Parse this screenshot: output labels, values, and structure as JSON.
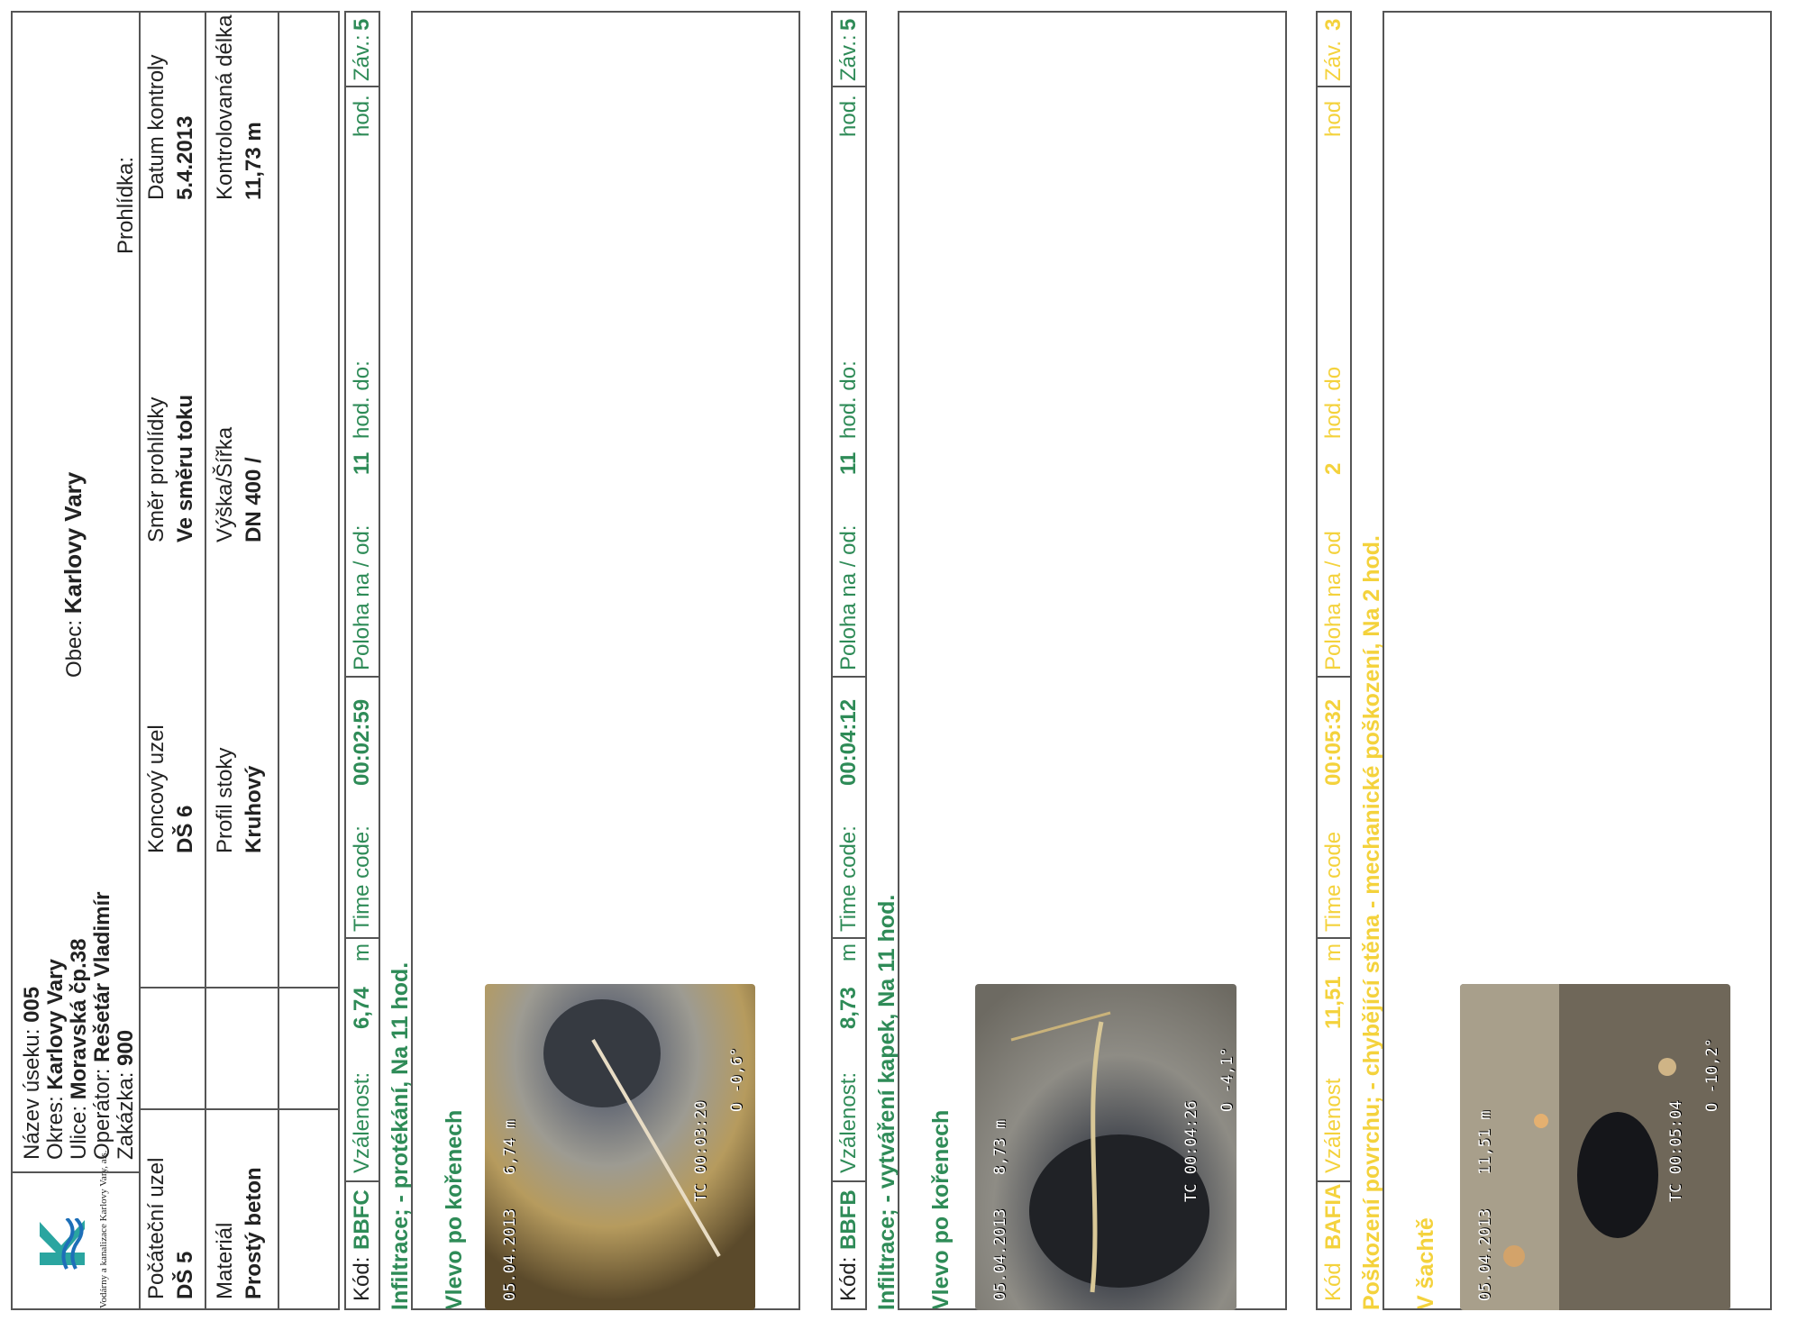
{
  "header": {
    "company": "Vodárny a kanalizace Karlovy Vary, a.s.",
    "section_label": "Název úseku:",
    "section_value": "005",
    "district_label": "Okres:",
    "district_value": "Karlovy Vary",
    "street_label": "Ulice:",
    "street_value": "Moravská čp.38",
    "operator_label": "Operátor:",
    "operator_value": "Rešetár Vladimír",
    "order_label": "Zakázka:",
    "order_value": "900",
    "municipality_label": "Obec:",
    "municipality_value": "Karlovy Vary",
    "inspection_label": "Prohlídka:",
    "start_node_label": "Počáteční uzel",
    "start_node_value": "DŠ 5",
    "end_node_label": "Koncový uzel",
    "end_node_value": "DŠ 6",
    "direction_label": "Směr prohlídky",
    "direction_value": "Ve směru toku",
    "date_label": "Datum kontroly",
    "date_value": "5.4.2013",
    "material_label": "Materiál",
    "material_value": "Prostý beton",
    "profile_label": "Profil stoky",
    "profile_value": "Kruhový",
    "size_label": "Výška/Šířka",
    "size_value": "DN 400  /",
    "length_label": "Kontrolovaná délka",
    "length_value": "11,73 m"
  },
  "defects": [
    {
      "code_label": "Kód:",
      "code": "BBFC",
      "distance_label": "Vzálenost:",
      "distance": "6,74",
      "unit": "m",
      "timecode_label": "Time code:",
      "timecode": "00:02:59",
      "position_label": "Poloha na / od:",
      "position_from": "11",
      "position_to_label": "hod. do:",
      "position_unit": "hod.",
      "severity_label": "Záv.:",
      "severity": "5",
      "description": "Infiltrace; - protékání, Na 11 hod.",
      "location": "Vlevo po kořenech",
      "osd_distance": "6,74 m",
      "osd_date": "05.04.2013",
      "osd_timecode": "TC 00:03:20",
      "osd_incline": "O -0,6°"
    },
    {
      "code_label": "Kód:",
      "code": "BBFB",
      "distance_label": "Vzálenost:",
      "distance": "8,73",
      "unit": "m",
      "timecode_label": "Time code:",
      "timecode": "00:04:12",
      "position_label": "Poloha na / od:",
      "position_from": "11",
      "position_to_label": "hod. do:",
      "position_unit": "hod.",
      "severity_label": "Záv.:",
      "severity": "5",
      "description": "Infiltrace; - vytváření kapek, Na 11 hod.",
      "location": "Vlevo po kořenech",
      "osd_distance": "8,73 m",
      "osd_date": "05.04.2013",
      "osd_timecode": "TC 00:04:26",
      "osd_incline": "O -4,1°"
    },
    {
      "code_label": "Kód",
      "code": "BAFIA",
      "distance_label": "Vzálenost",
      "distance": "11,51",
      "unit": "m",
      "timecode_label": "Time code",
      "timecode": "00:05:32",
      "position_label": "Poloha na / od",
      "position_from": "2",
      "position_to_label": "hod. do",
      "position_unit": "hod",
      "severity_label": "Záv.",
      "severity": "3",
      "description": "Poškození povrchu; - chybějící stěna - mechanické poškození, Na 2 hod.",
      "location": "V šachtě",
      "osd_distance": "11,51 m",
      "osd_date": "05.04.2013",
      "osd_timecode": "TC 00:05:04",
      "osd_incline": "O -10,2°"
    }
  ]
}
